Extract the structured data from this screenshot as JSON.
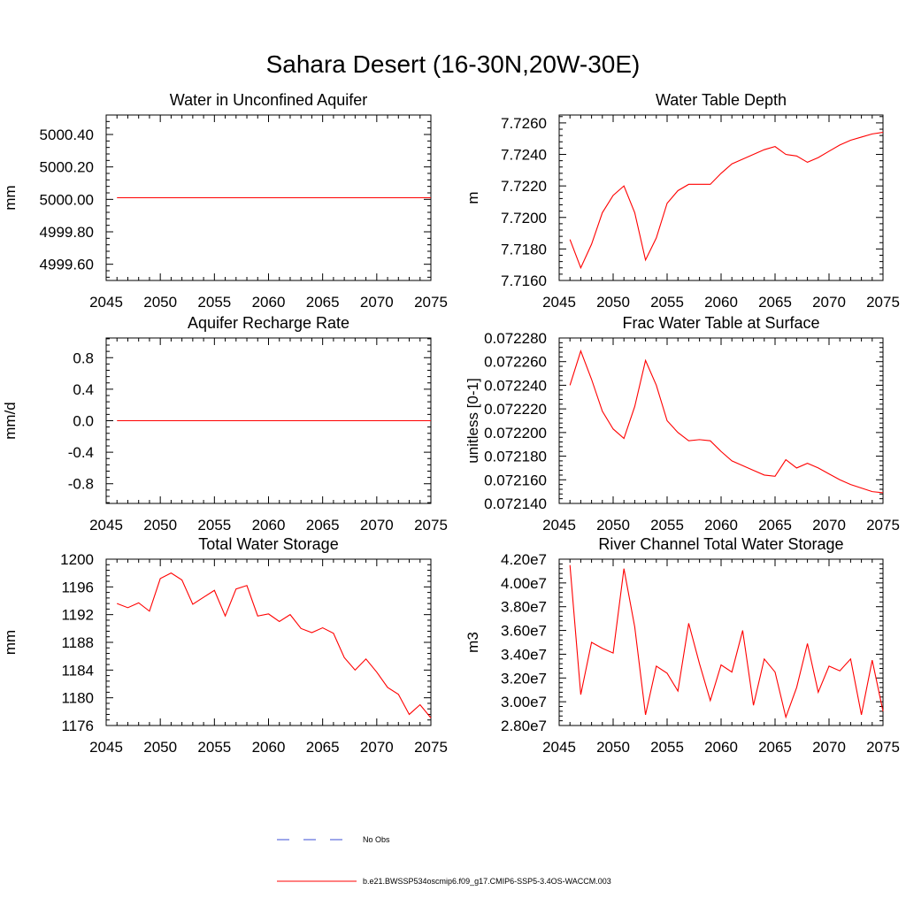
{
  "figure": {
    "title": "Sahara Desert (16-30N,20W-30E)"
  },
  "legend": {
    "items": [
      {
        "label": "No Obs",
        "style": "dashed",
        "color": "#3b4fd6"
      },
      {
        "label": "b.e21.BWSSP534oscmip6.f09_g17.CMIP6-SSP5-3.4OS-WACCM.003",
        "style": "solid",
        "color": "#ff0000"
      }
    ]
  },
  "chart_data": [
    {
      "id": "water-unconfined-aquifer",
      "type": "line",
      "title": "Water in Unconfined Aquifer",
      "ylabel": "mm",
      "xlim": [
        2045,
        2075
      ],
      "ylim": [
        4999.5,
        5000.52
      ],
      "xticks": [
        2045,
        2050,
        2055,
        2060,
        2065,
        2070,
        2075
      ],
      "yticks": [
        4999.6,
        4999.8,
        5000.0,
        5000.2,
        5000.4
      ],
      "ytick_labels": [
        "4999.60",
        "4999.80",
        "5000.00",
        "5000.20",
        "5000.40"
      ],
      "series": [
        {
          "color": "#ff0000",
          "x": [
            2046,
            2047,
            2048,
            2049,
            2050,
            2051,
            2052,
            2053,
            2054,
            2055,
            2056,
            2057,
            2058,
            2059,
            2060,
            2061,
            2062,
            2063,
            2064,
            2065,
            2066,
            2067,
            2068,
            2069,
            2070,
            2071,
            2072,
            2073,
            2074,
            2075
          ],
          "y": [
            5000.01,
            5000.01,
            5000.01,
            5000.01,
            5000.01,
            5000.01,
            5000.01,
            5000.01,
            5000.01,
            5000.01,
            5000.01,
            5000.01,
            5000.01,
            5000.01,
            5000.01,
            5000.01,
            5000.01,
            5000.01,
            5000.01,
            5000.01,
            5000.01,
            5000.01,
            5000.01,
            5000.01,
            5000.01,
            5000.01,
            5000.01,
            5000.01,
            5000.01,
            5000.01
          ]
        }
      ]
    },
    {
      "id": "water-table-depth",
      "type": "line",
      "title": "Water Table Depth",
      "ylabel": "m",
      "xlim": [
        2045,
        2075
      ],
      "ylim": [
        7.716,
        7.7265
      ],
      "xticks": [
        2045,
        2050,
        2055,
        2060,
        2065,
        2070,
        2075
      ],
      "yticks": [
        7.716,
        7.718,
        7.72,
        7.722,
        7.724,
        7.726
      ],
      "ytick_labels": [
        "7.7160",
        "7.7180",
        "7.7200",
        "7.7220",
        "7.7240",
        "7.7260"
      ],
      "series": [
        {
          "color": "#ff0000",
          "x": [
            2046,
            2047,
            2048,
            2049,
            2050,
            2051,
            2052,
            2053,
            2054,
            2055,
            2056,
            2057,
            2058,
            2059,
            2060,
            2061,
            2062,
            2063,
            2064,
            2065,
            2066,
            2067,
            2068,
            2069,
            2070,
            2071,
            2072,
            2073,
            2074,
            2075
          ],
          "y": [
            7.7186,
            7.7168,
            7.7183,
            7.7203,
            7.7214,
            7.722,
            7.7203,
            7.7173,
            7.7187,
            7.7209,
            7.7217,
            7.7221,
            7.7221,
            7.7221,
            7.7228,
            7.7234,
            7.7237,
            7.724,
            7.7243,
            7.7245,
            7.724,
            7.7239,
            7.7235,
            7.7238,
            7.7242,
            7.7246,
            7.7249,
            7.7251,
            7.7253,
            7.7254
          ]
        }
      ]
    },
    {
      "id": "aquifer-recharge-rate",
      "type": "line",
      "title": "Aquifer Recharge Rate",
      "ylabel": "mm/d",
      "xlim": [
        2045,
        2075
      ],
      "ylim": [
        -1.05,
        1.05
      ],
      "xticks": [
        2045,
        2050,
        2055,
        2060,
        2065,
        2070,
        2075
      ],
      "yticks": [
        -0.8,
        -0.4,
        0.0,
        0.4,
        0.8
      ],
      "ytick_labels": [
        "-0.8",
        "-0.4",
        "0.0",
        "0.4",
        "0.8"
      ],
      "series": [
        {
          "color": "#ff0000",
          "x": [
            2046,
            2047,
            2048,
            2049,
            2050,
            2051,
            2052,
            2053,
            2054,
            2055,
            2056,
            2057,
            2058,
            2059,
            2060,
            2061,
            2062,
            2063,
            2064,
            2065,
            2066,
            2067,
            2068,
            2069,
            2070,
            2071,
            2072,
            2073,
            2074,
            2075
          ],
          "y": [
            0,
            0,
            0,
            0,
            0,
            0,
            0,
            0,
            0,
            0,
            0,
            0,
            0,
            0,
            0,
            0,
            0,
            0,
            0,
            0,
            0,
            0,
            0,
            0,
            0,
            0,
            0,
            0,
            0,
            0
          ]
        }
      ]
    },
    {
      "id": "frac-water-table",
      "type": "line",
      "title": "Frac Water Table at Surface",
      "ylabel": "unitless [0-1]",
      "xlim": [
        2045,
        2075
      ],
      "ylim": [
        0.07214,
        0.07228
      ],
      "xticks": [
        2045,
        2050,
        2055,
        2060,
        2065,
        2070,
        2075
      ],
      "yticks": [
        0.07214,
        0.07216,
        0.07218,
        0.0722,
        0.07222,
        0.07224,
        0.07226,
        0.07228
      ],
      "ytick_labels": [
        "0.072140",
        "0.072160",
        "0.072180",
        "0.072200",
        "0.072220",
        "0.072240",
        "0.072260",
        "0.072280"
      ],
      "series": [
        {
          "color": "#ff0000",
          "x": [
            2046,
            2047,
            2048,
            2049,
            2050,
            2051,
            2052,
            2053,
            2054,
            2055,
            2056,
            2057,
            2058,
            2059,
            2060,
            2061,
            2062,
            2063,
            2064,
            2065,
            2066,
            2067,
            2068,
            2069,
            2070,
            2071,
            2072,
            2073,
            2074,
            2075
          ],
          "y": [
            0.07224,
            0.072269,
            0.072245,
            0.072218,
            0.072203,
            0.072195,
            0.072222,
            0.072261,
            0.07224,
            0.07221,
            0.0722,
            0.072193,
            0.072194,
            0.072193,
            0.072184,
            0.072176,
            0.072172,
            0.072168,
            0.072164,
            0.072163,
            0.072177,
            0.07217,
            0.072174,
            0.07217,
            0.072165,
            0.07216,
            0.072156,
            0.072153,
            0.07215,
            0.072149
          ]
        }
      ]
    },
    {
      "id": "total-water-storage",
      "type": "line",
      "title": "Total Water Storage",
      "ylabel": "mm",
      "xlim": [
        2045,
        2075
      ],
      "ylim": [
        1176,
        1200
      ],
      "xticks": [
        2045,
        2050,
        2055,
        2060,
        2065,
        2070,
        2075
      ],
      "yticks": [
        1176,
        1180,
        1184,
        1188,
        1192,
        1196,
        1200
      ],
      "ytick_labels": [
        "1176",
        "1180",
        "1184",
        "1188",
        "1192",
        "1196",
        "1200"
      ],
      "series": [
        {
          "color": "#ff0000",
          "x": [
            2046,
            2047,
            2048,
            2049,
            2050,
            2051,
            2052,
            2053,
            2054,
            2055,
            2056,
            2057,
            2058,
            2059,
            2060,
            2061,
            2062,
            2063,
            2064,
            2065,
            2066,
            2067,
            2068,
            2069,
            2070,
            2071,
            2072,
            2073,
            2074,
            2075
          ],
          "y": [
            1193.6,
            1193.0,
            1193.7,
            1192.5,
            1197.2,
            1198.0,
            1197.0,
            1193.5,
            1194.5,
            1195.5,
            1191.8,
            1195.7,
            1196.2,
            1191.8,
            1192.1,
            1191.0,
            1192.0,
            1190.0,
            1189.4,
            1190.1,
            1189.3,
            1185.8,
            1184.0,
            1185.6,
            1183.7,
            1181.5,
            1180.5,
            1177.6,
            1179.0,
            1177.1
          ]
        }
      ]
    },
    {
      "id": "river-channel-storage",
      "type": "line",
      "title": "River Channel Total Water Storage",
      "ylabel": "m3",
      "xlim": [
        2045,
        2075
      ],
      "ylim": [
        28000000,
        42000000
      ],
      "xticks": [
        2045,
        2050,
        2055,
        2060,
        2065,
        2070,
        2075
      ],
      "yticks": [
        28000000,
        30000000,
        32000000,
        34000000,
        36000000,
        38000000,
        40000000,
        42000000
      ],
      "ytick_labels": [
        "2.80e7",
        "3.00e7",
        "3.20e7",
        "3.40e7",
        "3.60e7",
        "3.80e7",
        "4.00e7",
        "4.20e7"
      ],
      "series": [
        {
          "color": "#ff0000",
          "x": [
            2046,
            2047,
            2048,
            2049,
            2050,
            2051,
            2052,
            2053,
            2054,
            2055,
            2056,
            2057,
            2058,
            2059,
            2060,
            2061,
            2062,
            2063,
            2064,
            2065,
            2066,
            2067,
            2068,
            2069,
            2070,
            2071,
            2072,
            2073,
            2074,
            2075
          ],
          "y": [
            41500000,
            30600000,
            35000000,
            34500000,
            34100000,
            41200000,
            36300000,
            28900000,
            33000000,
            32400000,
            30900000,
            36600000,
            33200000,
            30100000,
            33100000,
            32500000,
            36000000,
            29700000,
            33600000,
            32500000,
            28700000,
            31200000,
            34900000,
            30800000,
            33000000,
            32600000,
            33600000,
            28900000,
            33500000,
            29200000
          ]
        }
      ]
    }
  ]
}
